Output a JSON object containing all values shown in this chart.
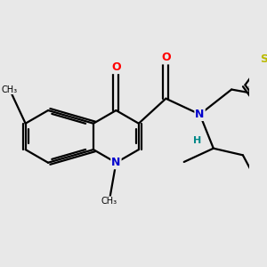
{
  "bg_color": "#e8e8e8",
  "bond_color": "#000000",
  "atom_colors": {
    "O": "#ff0000",
    "N": "#0000cc",
    "S": "#bbbb00",
    "H": "#008888",
    "C": "#000000"
  },
  "figsize": [
    3.0,
    3.0
  ],
  "dpi": 100,
  "lw": 1.6,
  "sep": 0.045
}
